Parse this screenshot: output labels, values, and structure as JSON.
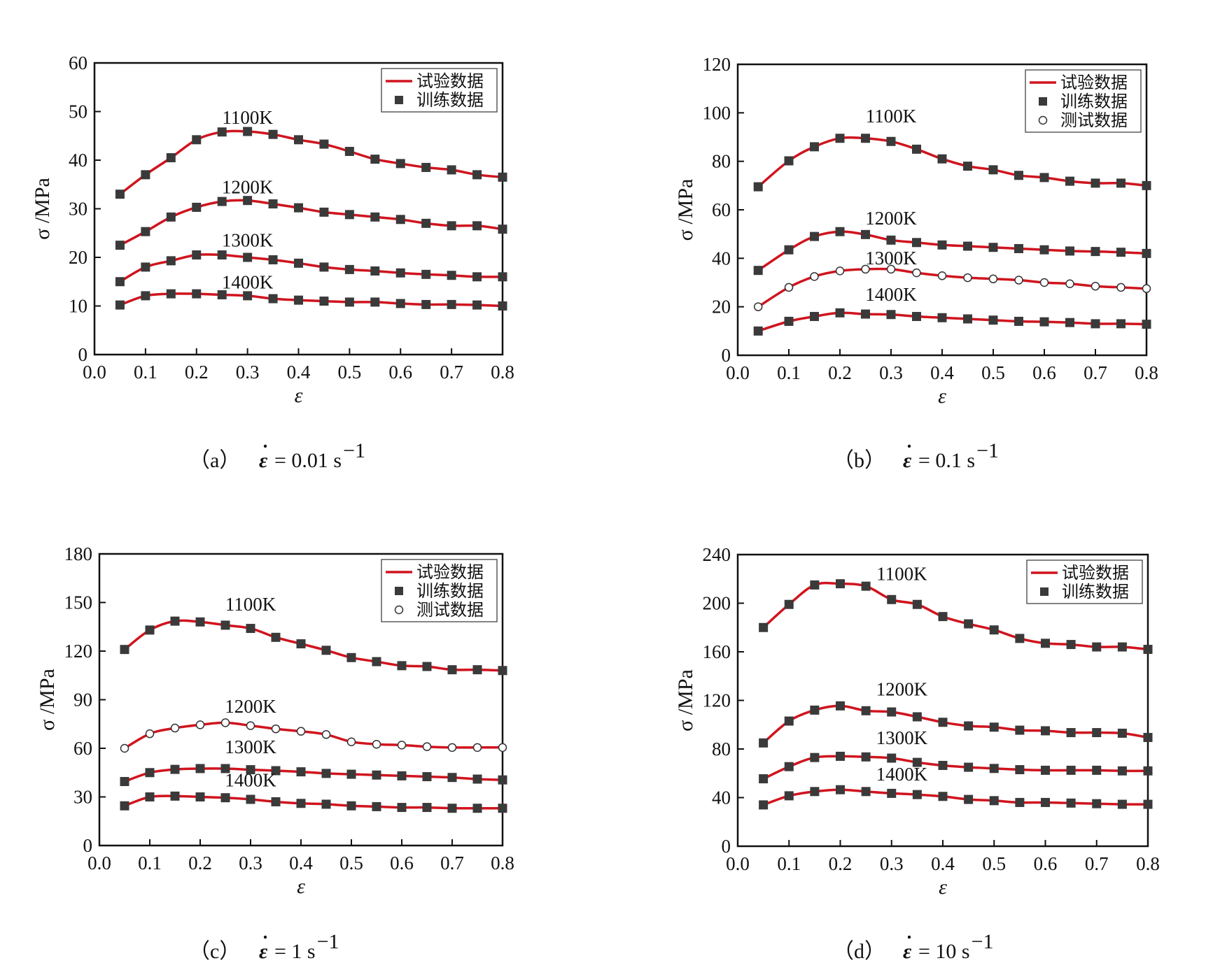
{
  "figure": {
    "colors": {
      "experimental": "#d0141e",
      "training": "#3a3a3a",
      "axis": "#111111"
    }
  },
  "chart_data": [
    {
      "type": "line",
      "panel": "a",
      "caption": {
        "label": "（a）",
        "rate_symbol": "ε",
        "rate_text": " = 0.01 s",
        "rate_exp": "−1"
      },
      "xlabel": "ε",
      "ylabel": "σ /MPa",
      "xlim": [
        0.0,
        0.8
      ],
      "ylim": [
        0,
        60
      ],
      "xticks": [
        0.0,
        0.1,
        0.2,
        0.3,
        0.4,
        0.5,
        0.6,
        0.7,
        0.8
      ],
      "xtick_labels": [
        "0.0",
        "0.1",
        "0.2",
        "0.3",
        "0.4",
        "0.5",
        "0.6",
        "0.7",
        "0.8"
      ],
      "yticks": [
        0,
        10,
        20,
        30,
        40,
        50,
        60
      ],
      "ytick_labels": [
        "0",
        "10",
        "20",
        "30",
        "40",
        "50",
        "60"
      ],
      "legend_position": "top-right",
      "legend": [
        {
          "label": "试验数据",
          "marker": "line"
        },
        {
          "label": "训练数据",
          "marker": "square"
        }
      ],
      "x": [
        0.05,
        0.1,
        0.15,
        0.2,
        0.25,
        0.3,
        0.35,
        0.4,
        0.45,
        0.5,
        0.55,
        0.6,
        0.65,
        0.7,
        0.75,
        0.8
      ],
      "series": [
        {
          "label": "1100K",
          "label_at": [
            0.3,
            47.5
          ],
          "marker": "square",
          "values": [
            33,
            37,
            40.5,
            44.2,
            45.8,
            45.9,
            45.3,
            44.2,
            43.3,
            41.8,
            40.2,
            39.3,
            38.5,
            38,
            37,
            36.5
          ]
        },
        {
          "label": "1200K",
          "label_at": [
            0.3,
            33.2
          ],
          "marker": "square",
          "values": [
            22.5,
            25.3,
            28.3,
            30.3,
            31.5,
            31.7,
            31,
            30.2,
            29.3,
            28.8,
            28.3,
            27.8,
            27,
            26.5,
            26.5,
            25.8
          ]
        },
        {
          "label": "1300K",
          "label_at": [
            0.3,
            22.2
          ],
          "marker": "square",
          "values": [
            15,
            18,
            19.3,
            20.5,
            20.5,
            20,
            19.5,
            18.8,
            18,
            17.5,
            17.2,
            16.8,
            16.5,
            16.3,
            16,
            16
          ]
        },
        {
          "label": "1400K",
          "label_at": [
            0.3,
            13.6
          ],
          "marker": "square",
          "values": [
            10.2,
            12.1,
            12.5,
            12.5,
            12.3,
            12.1,
            11.5,
            11.2,
            11,
            10.8,
            10.8,
            10.5,
            10.3,
            10.3,
            10.2,
            10
          ]
        }
      ]
    },
    {
      "type": "line",
      "panel": "b",
      "caption": {
        "label": "（b）",
        "rate_symbol": "ε",
        "rate_text": " = 0.1 s",
        "rate_exp": "−1"
      },
      "xlabel": "ε",
      "ylabel": "σ /MPa",
      "xlim": [
        0.0,
        0.8
      ],
      "ylim": [
        0,
        120
      ],
      "xticks": [
        0.0,
        0.1,
        0.2,
        0.3,
        0.4,
        0.5,
        0.6,
        0.7,
        0.8
      ],
      "xtick_labels": [
        "0.0",
        "0.1",
        "0.2",
        "0.3",
        "0.4",
        "0.5",
        "0.6",
        "0.7",
        "0.8"
      ],
      "yticks": [
        0,
        20,
        40,
        60,
        80,
        100,
        120
      ],
      "ytick_labels": [
        "0",
        "20",
        "40",
        "60",
        "80",
        "100",
        "120"
      ],
      "legend_position": "top-right",
      "legend": [
        {
          "label": "试验数据",
          "marker": "line"
        },
        {
          "label": "训练数据",
          "marker": "square"
        },
        {
          "label": "测试数据",
          "marker": "circle"
        }
      ],
      "x": [
        0.04,
        0.1,
        0.15,
        0.2,
        0.25,
        0.3,
        0.35,
        0.4,
        0.45,
        0.5,
        0.55,
        0.6,
        0.65,
        0.7,
        0.75,
        0.8
      ],
      "series": [
        {
          "label": "1100K",
          "label_at": [
            0.3,
            96
          ],
          "marker": "square",
          "values": [
            69.5,
            80.2,
            86,
            89.5,
            89.5,
            88.2,
            85,
            81,
            78,
            76.5,
            74.2,
            73.3,
            71.8,
            71,
            71,
            70
          ]
        },
        {
          "label": "1200K",
          "label_at": [
            0.3,
            54
          ],
          "marker": "square",
          "values": [
            35,
            43.5,
            49,
            51,
            49.8,
            47.5,
            46.5,
            45.5,
            45,
            44.5,
            44,
            43.5,
            43,
            42.8,
            42.5,
            42
          ]
        },
        {
          "label": "1300K",
          "label_at": [
            0.3,
            37.5
          ],
          "marker": "circle",
          "values": [
            20,
            28,
            32.5,
            34.8,
            35.5,
            35.5,
            34,
            32.8,
            32,
            31.5,
            31,
            30,
            29.5,
            28.5,
            28,
            27.5
          ]
        },
        {
          "label": "1400K",
          "label_at": [
            0.3,
            22.5
          ],
          "marker": "square",
          "values": [
            10,
            14,
            16,
            17.5,
            17,
            16.8,
            16,
            15.5,
            15,
            14.5,
            14,
            13.8,
            13.5,
            13,
            13,
            12.8
          ]
        }
      ]
    },
    {
      "type": "line",
      "panel": "c",
      "caption": {
        "label": "（c）",
        "rate_symbol": "ε",
        "rate_text": " = 1 s",
        "rate_exp": "−1"
      },
      "xlabel": "ε",
      "ylabel": "σ /MPa",
      "xlim": [
        0.0,
        0.8
      ],
      "ylim": [
        0,
        180
      ],
      "xticks": [
        0.0,
        0.1,
        0.2,
        0.3,
        0.4,
        0.5,
        0.6,
        0.7,
        0.8
      ],
      "xtick_labels": [
        "0.0",
        "0.1",
        "0.2",
        "0.3",
        "0.4",
        "0.5",
        "0.6",
        "0.7",
        "0.8"
      ],
      "yticks": [
        0,
        30,
        60,
        90,
        120,
        150,
        180
      ],
      "ytick_labels": [
        "0",
        "30",
        "60",
        "90",
        "120",
        "150",
        "180"
      ],
      "legend_position": "top-right",
      "legend": [
        {
          "label": "试验数据",
          "marker": "line"
        },
        {
          "label": "训练数据",
          "marker": "square"
        },
        {
          "label": "测试数据",
          "marker": "circle"
        }
      ],
      "x": [
        0.05,
        0.1,
        0.15,
        0.2,
        0.25,
        0.3,
        0.35,
        0.4,
        0.45,
        0.5,
        0.55,
        0.6,
        0.65,
        0.7,
        0.75,
        0.8
      ],
      "series": [
        {
          "label": "1100K",
          "label_at": [
            0.3,
            145
          ],
          "marker": "square",
          "values": [
            121,
            133,
            138.5,
            138,
            136,
            134,
            128.5,
            124.5,
            120.5,
            116,
            113.5,
            111,
            110.5,
            108.5,
            108.5,
            108
          ]
        },
        {
          "label": "1200K",
          "label_at": [
            0.3,
            82
          ],
          "marker": "circle",
          "values": [
            60,
            69,
            72.5,
            74.5,
            75.8,
            74,
            72,
            70.5,
            68.5,
            64,
            62.5,
            62,
            61,
            60.5,
            60.5,
            60.5
          ]
        },
        {
          "label": "1300K",
          "label_at": [
            0.3,
            57
          ],
          "marker": "square",
          "values": [
            39.5,
            45,
            47,
            47.5,
            47.5,
            46.8,
            46.2,
            45.5,
            44.5,
            44,
            43.5,
            43,
            42.5,
            42,
            41,
            40.5
          ]
        },
        {
          "label": "1400K",
          "label_at": [
            0.3,
            36.5
          ],
          "marker": "square",
          "values": [
            24.5,
            30,
            30.5,
            30,
            29.5,
            28.5,
            27,
            26,
            25.5,
            24.5,
            24,
            23.5,
            23.5,
            23,
            23,
            23
          ]
        }
      ]
    },
    {
      "type": "line",
      "panel": "d",
      "caption": {
        "label": "（d）",
        "rate_symbol": "ε",
        "rate_text": " = 10 s",
        "rate_exp": "−1"
      },
      "xlabel": "ε",
      "ylabel": "σ /MPa",
      "xlim": [
        0.0,
        0.8
      ],
      "ylim": [
        0,
        240
      ],
      "xticks": [
        0.0,
        0.1,
        0.2,
        0.3,
        0.4,
        0.5,
        0.6,
        0.7,
        0.8
      ],
      "xtick_labels": [
        "0.0",
        "0.1",
        "0.2",
        "0.3",
        "0.4",
        "0.5",
        "0.6",
        "0.7",
        "0.8"
      ],
      "yticks": [
        0,
        40,
        80,
        120,
        160,
        200,
        240
      ],
      "ytick_labels": [
        "0",
        "40",
        "80",
        "120",
        "160",
        "200",
        "240"
      ],
      "legend_position": "top-right",
      "legend": [
        {
          "label": "试验数据",
          "marker": "line"
        },
        {
          "label": "训练数据",
          "marker": "square"
        }
      ],
      "x": [
        0.05,
        0.1,
        0.15,
        0.2,
        0.25,
        0.3,
        0.35,
        0.4,
        0.45,
        0.5,
        0.55,
        0.6,
        0.65,
        0.7,
        0.75,
        0.8
      ],
      "series": [
        {
          "label": "1100K",
          "label_at": [
            0.32,
            219
          ],
          "marker": "square",
          "values": [
            180,
            199,
            215,
            216,
            214,
            203,
            199,
            189,
            183,
            178,
            171,
            167,
            166,
            164,
            164,
            162
          ]
        },
        {
          "label": "1200K",
          "label_at": [
            0.32,
            124
          ],
          "marker": "square",
          "values": [
            85,
            103,
            112,
            115.5,
            111.5,
            110.5,
            106.5,
            102,
            99,
            98,
            95.5,
            95,
            93.5,
            93.5,
            93,
            89.5
          ]
        },
        {
          "label": "1300K",
          "label_at": [
            0.32,
            84
          ],
          "marker": "square",
          "values": [
            55.5,
            65.5,
            73,
            74,
            73.5,
            72.5,
            69,
            66.5,
            65,
            64,
            63,
            62.5,
            62.5,
            62.5,
            62,
            62
          ]
        },
        {
          "label": "1400K",
          "label_at": [
            0.32,
            54
          ],
          "marker": "square",
          "values": [
            34,
            41.5,
            45,
            46.5,
            45,
            43.5,
            42.5,
            41,
            38.5,
            37.5,
            36,
            36,
            35.5,
            35,
            34.5,
            34.5
          ]
        }
      ]
    }
  ]
}
